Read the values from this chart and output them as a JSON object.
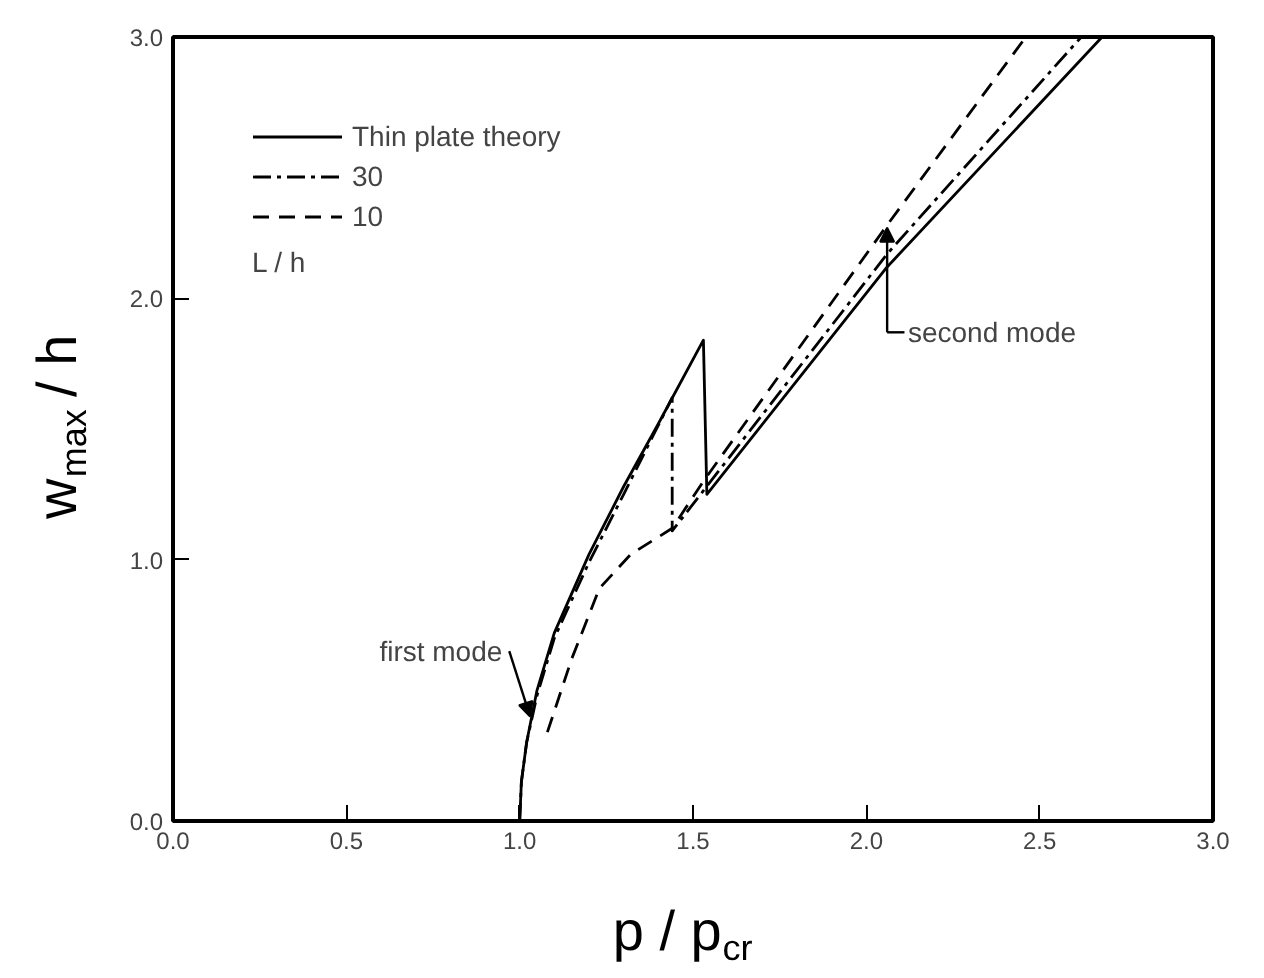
{
  "chart_data": {
    "type": "line",
    "xlabel": "p / p$_{cr}$",
    "ylabel": "w$_{max}$ / h",
    "legend_title": "L / h",
    "legend": "top left",
    "grid": false,
    "xlim": [
      0,
      3
    ],
    "ylim": [
      0,
      3
    ],
    "xticks": [
      {
        "value": 0,
        "label": "0.0"
      },
      {
        "value": 0.5,
        "label": "0.5"
      },
      {
        "value": 1,
        "label": "1.0"
      },
      {
        "value": 1.5,
        "label": "1.5"
      },
      {
        "value": 2,
        "label": "2.0"
      },
      {
        "value": 2.5,
        "label": "2.5"
      },
      {
        "value": 3,
        "label": "3.0"
      }
    ],
    "yticks": [
      {
        "value": 0,
        "label": "0.0"
      },
      {
        "value": 1,
        "label": "1.0"
      },
      {
        "value": 2,
        "label": "2.0"
      },
      {
        "value": 3,
        "label": "3.0"
      }
    ],
    "series": [
      {
        "name": "Thin plate theory",
        "color": "#000000",
        "line_style": "solid",
        "x": [
          1.0,
          1.005,
          1.02,
          1.05,
          1.1,
          1.2,
          1.3,
          1.4,
          1.53,
          1.54,
          2.06,
          2.68
        ],
        "values": [
          0,
          0.15,
          0.3,
          0.5,
          0.72,
          1.02,
          1.28,
          1.52,
          1.84,
          1.25,
          2.12,
          3.0
        ]
      },
      {
        "name": "30",
        "color": "#000000",
        "line_style": "dashdot",
        "x": [
          1.0,
          1.005,
          1.02,
          1.05,
          1.1,
          1.2,
          1.3,
          1.44,
          1.44,
          2.06,
          2.62
        ],
        "values": [
          0,
          0.15,
          0.3,
          0.48,
          0.7,
          0.99,
          1.25,
          1.62,
          1.11,
          2.17,
          3.0
        ]
      },
      {
        "name": "10",
        "color": "#000000",
        "line_style": "dashed",
        "x": [
          1.08,
          1.15,
          1.23,
          1.32,
          1.44,
          1.53,
          2.06,
          2.46
        ],
        "values": [
          0.34,
          0.62,
          0.89,
          1.02,
          1.12,
          1.3,
          2.28,
          3.0
        ]
      }
    ],
    "annotations": [
      {
        "text": "first mode",
        "x": 1.03,
        "y": 0.4
      },
      {
        "text": "second mode",
        "x": 2.06,
        "y": 2.12
      }
    ]
  }
}
